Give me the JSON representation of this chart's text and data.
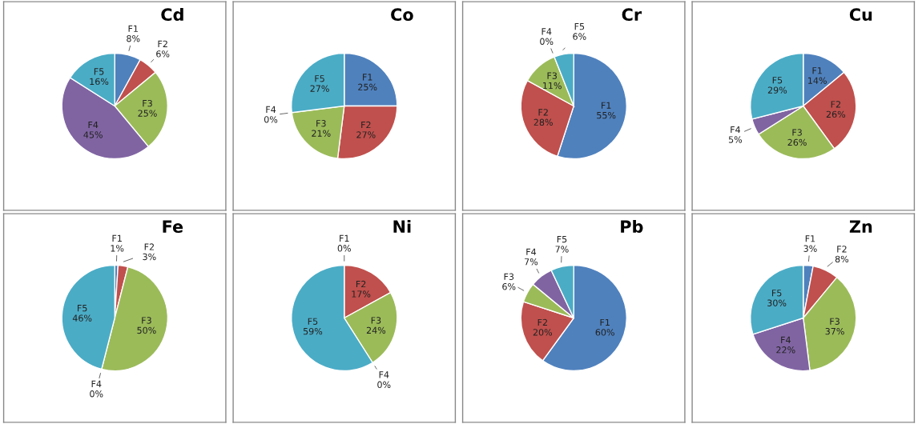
{
  "chart_data": [
    {
      "type": "pie",
      "title": "Cd",
      "categories": [
        "F1",
        "F2",
        "F3",
        "F4",
        "F5"
      ],
      "values": [
        8,
        6,
        25,
        45,
        16
      ],
      "value_labels": [
        "8%",
        "6%",
        "25%",
        "45%",
        "16%"
      ],
      "colors": [
        "#4f81bd",
        "#c0504d",
        "#9bbb59",
        "#8064a2",
        "#4bacc6"
      ]
    },
    {
      "type": "pie",
      "title": "Co",
      "categories": [
        "F1",
        "F2",
        "F3",
        "F4",
        "F5"
      ],
      "values": [
        25,
        27,
        21,
        0,
        27
      ],
      "value_labels": [
        "25%",
        "27%",
        "21%",
        "0%",
        "27%"
      ],
      "colors": [
        "#4f81bd",
        "#c0504d",
        "#9bbb59",
        "#8064a2",
        "#4bacc6"
      ]
    },
    {
      "type": "pie",
      "title": "Cr",
      "categories": [
        "F1",
        "F2",
        "F3",
        "F4",
        "F5"
      ],
      "values": [
        55,
        28,
        11,
        0,
        6
      ],
      "value_labels": [
        "55%",
        "28%",
        "11%",
        "0%",
        "6%"
      ],
      "colors": [
        "#4f81bd",
        "#c0504d",
        "#9bbb59",
        "#8064a2",
        "#4bacc6"
      ]
    },
    {
      "type": "pie",
      "title": "Cu",
      "categories": [
        "F1",
        "F2",
        "F3",
        "F4",
        "F5"
      ],
      "values": [
        14,
        26,
        26,
        5,
        29
      ],
      "value_labels": [
        "14%",
        "26%",
        "26%",
        "5%",
        "29%"
      ],
      "colors": [
        "#4f81bd",
        "#c0504d",
        "#9bbb59",
        "#8064a2",
        "#4bacc6"
      ]
    },
    {
      "type": "pie",
      "title": "Fe",
      "categories": [
        "F1",
        "F2",
        "F3",
        "F4",
        "F5"
      ],
      "values": [
        1,
        3,
        50,
        0,
        46
      ],
      "value_labels": [
        "1%",
        "3%",
        "50%",
        "0%",
        "46%"
      ],
      "colors": [
        "#4f81bd",
        "#c0504d",
        "#9bbb59",
        "#8064a2",
        "#4bacc6"
      ]
    },
    {
      "type": "pie",
      "title": "Ni",
      "categories": [
        "F1",
        "F2",
        "F3",
        "F4",
        "F5"
      ],
      "values": [
        0,
        17,
        24,
        0,
        59
      ],
      "value_labels": [
        "0%",
        "17%",
        "24%",
        "0%",
        "59%"
      ],
      "colors": [
        "#4f81bd",
        "#c0504d",
        "#9bbb59",
        "#8064a2",
        "#4bacc6"
      ]
    },
    {
      "type": "pie",
      "title": "Pb",
      "categories": [
        "F1",
        "F2",
        "F3",
        "F4",
        "F5"
      ],
      "values": [
        60,
        20,
        6,
        7,
        7
      ],
      "value_labels": [
        "60%",
        "20%",
        "6%",
        "7%",
        "7%"
      ],
      "colors": [
        "#4f81bd",
        "#c0504d",
        "#9bbb59",
        "#8064a2",
        "#4bacc6"
      ]
    },
    {
      "type": "pie",
      "title": "Zn",
      "categories": [
        "F1",
        "F2",
        "F3",
        "F4",
        "F5"
      ],
      "values": [
        3,
        8,
        37,
        22,
        30
      ],
      "value_labels": [
        "3%",
        "8%",
        "37%",
        "22%",
        "30%"
      ],
      "colors": [
        "#4f81bd",
        "#c0504d",
        "#9bbb59",
        "#8064a2",
        "#4bacc6"
      ]
    }
  ]
}
